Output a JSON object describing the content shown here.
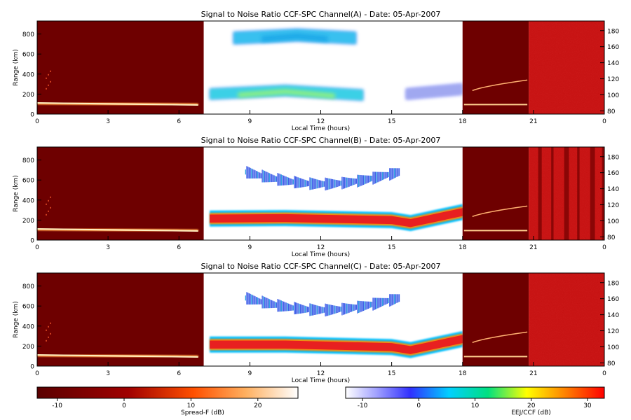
{
  "chart_data": {
    "type": "heatmap",
    "panels": [
      {
        "title": "Signal to Noise Ratio CCF-SPC Channel(A) - Date: 05-Apr-2007",
        "ylabel": "Range (km)",
        "xlabel": "Local Time (hours)",
        "left_axis_ticks": [
          "0",
          "200",
          "400",
          "600",
          "800"
        ],
        "right_axis_ticks": [
          "80",
          "100",
          "120",
          "140",
          "160",
          "180"
        ],
        "x_ticks": [
          "0",
          "3",
          "6",
          "9",
          "12",
          "15",
          "18",
          "21",
          "0"
        ],
        "bands": [
          {
            "name": "lower-echo",
            "t_start": 7.3,
            "t_end": 13.8,
            "center": [
              [
                7.3,
                200
              ],
              [
                10.5,
                235
              ],
              [
                13.8,
                190
              ]
            ],
            "color": "#3ad0e6",
            "core": "#8ef080"
          },
          {
            "name": "upper-echo",
            "t_start": 8.3,
            "t_end": 13.5,
            "center": [
              [
                8.3,
                760
              ],
              [
                11,
                790
              ],
              [
                13.5,
                760
              ]
            ],
            "color": "#39c0ef",
            "core": "#1fa8e8"
          },
          {
            "name": "late-echo",
            "t_start": 15.6,
            "t_end": 18,
            "center": [
              [
                15.6,
                200
              ],
              [
                18,
                250
              ]
            ],
            "color": "#a0a8f0",
            "core": "#a0a8f0"
          }
        ],
        "right_block_striped": false
      },
      {
        "title": "Signal to Noise Ratio CCF-SPC Channel(B) - Date: 05-Apr-2007",
        "ylabel": "Range (km)",
        "xlabel": "Local Time (hours)",
        "left_axis_ticks": [
          "0",
          "200",
          "400",
          "600",
          "800"
        ],
        "right_axis_ticks": [
          "80",
          "100",
          "120",
          "140",
          "160",
          "180"
        ],
        "x_ticks": [
          "0",
          "3",
          "6",
          "9",
          "12",
          "15",
          "18",
          "21",
          "0"
        ],
        "bands": [
          {
            "name": "lower-echo",
            "t_start": 7.3,
            "t_end": 18,
            "center": [
              [
                7.3,
                215
              ],
              [
                10.5,
                220
              ],
              [
                15,
                200
              ],
              [
                15.8,
                170
              ],
              [
                18,
                280
              ]
            ],
            "color": "#e82020",
            "core": "#e82020"
          },
          {
            "name": "upper-echo",
            "t_start": 8.8,
            "t_end": 15.3,
            "center": [
              [
                8.8,
                680
              ],
              [
                11.8,
                600
              ],
              [
                15.3,
                660
              ]
            ],
            "color": "#4060e8",
            "core": "#4060e8"
          }
        ],
        "right_block_striped": true
      },
      {
        "title": "Signal to Noise Ratio CCF-SPC Channel(C) - Date: 05-Apr-2007",
        "ylabel": "Range (km)",
        "xlabel": "Local Time (hours)",
        "left_axis_ticks": [
          "0",
          "200",
          "400",
          "600",
          "800"
        ],
        "right_axis_ticks": [
          "80",
          "100",
          "120",
          "140",
          "160",
          "180"
        ],
        "x_ticks": [
          "0",
          "3",
          "6",
          "9",
          "12",
          "15",
          "18",
          "21",
          "0"
        ],
        "bands": [
          {
            "name": "lower-echo",
            "t_start": 7.3,
            "t_end": 18,
            "center": [
              [
                7.3,
                215
              ],
              [
                10.5,
                215
              ],
              [
                15,
                190
              ],
              [
                15.8,
                160
              ],
              [
                18,
                270
              ]
            ],
            "color": "#e82020",
            "core": "#e82020"
          },
          {
            "name": "upper-echo",
            "t_start": 8.8,
            "t_end": 15.3,
            "center": [
              [
                8.8,
                680
              ],
              [
                11.8,
                600
              ],
              [
                15.3,
                660
              ]
            ],
            "color": "#4060e8",
            "core": "#4060e8"
          }
        ],
        "right_block_striped": false
      }
    ],
    "colorbars": [
      {
        "label": "Spread-F (dB)",
        "ticks": [
          "-10",
          "0",
          "10",
          "20"
        ],
        "range": [
          -13,
          26
        ],
        "scheme": "hot"
      },
      {
        "label": "EEJ/CCF (dB)",
        "ticks": [
          "-10",
          "0",
          "10",
          "20",
          "30"
        ],
        "range": [
          -13,
          33
        ],
        "scheme": "rainbow"
      }
    ],
    "colors": {
      "spread_f_background": "#6e0000",
      "eej_block_background": "#c41010",
      "echo_line": "#fff0c0"
    }
  }
}
